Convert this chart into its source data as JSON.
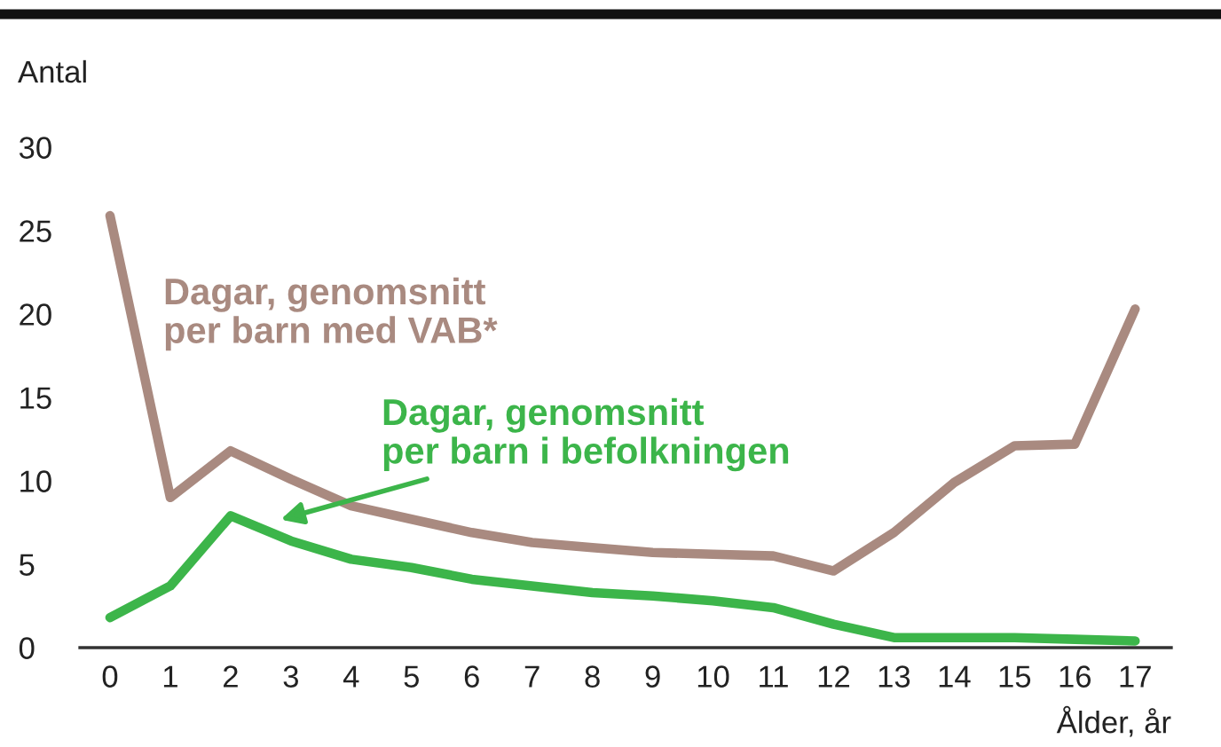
{
  "chart_data": {
    "type": "line",
    "ylabel": "Antal",
    "xlabel": "Ålder, år",
    "x": [
      0,
      1,
      2,
      3,
      4,
      5,
      6,
      7,
      8,
      9,
      10,
      11,
      12,
      13,
      14,
      15,
      16,
      17
    ],
    "xlim": [
      -0.5,
      17.6
    ],
    "xticks": [
      0,
      1,
      2,
      3,
      4,
      5,
      6,
      7,
      8,
      9,
      10,
      11,
      12,
      13,
      14,
      15,
      16,
      17
    ],
    "ylim": [
      0,
      30
    ],
    "yticks": [
      0,
      5,
      10,
      15,
      20,
      25,
      30
    ],
    "line_style": "solid",
    "series": [
      {
        "name": "Dagar, genomsnitt\nper barn med VAB*",
        "color": "#a98a80",
        "values": [
          25.9,
          9.0,
          11.8,
          10.1,
          8.5,
          7.7,
          6.9,
          6.3,
          6.0,
          5.7,
          5.6,
          5.5,
          4.6,
          6.9,
          9.9,
          12.1,
          12.2,
          20.3
        ]
      },
      {
        "name": "Dagar, genomsnitt\nper barn i befolkningen",
        "color": "#3cb54a",
        "values": [
          1.8,
          3.7,
          7.9,
          6.4,
          5.3,
          4.8,
          4.1,
          3.7,
          3.3,
          3.1,
          2.8,
          2.4,
          1.4,
          0.6,
          0.6,
          0.6,
          0.5,
          0.4
        ]
      }
    ]
  }
}
